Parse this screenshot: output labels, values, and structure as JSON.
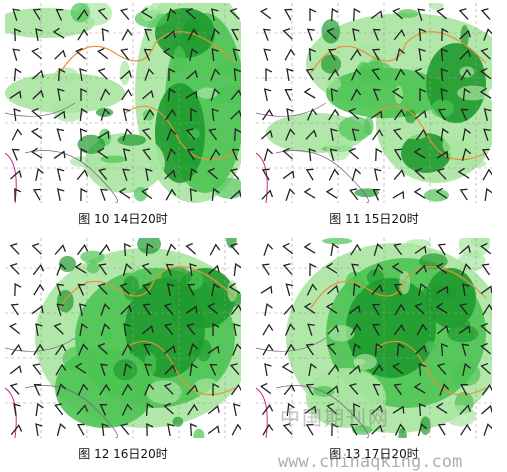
{
  "figures": [
    {
      "caption": "图 10 14日20时"
    },
    {
      "caption": "图 11 15日20时"
    },
    {
      "caption": "图 12 16日20时"
    },
    {
      "caption": "图 13 17日20时"
    }
  ],
  "watermark": {
    "text": "中国期刊网",
    "url": "www.chinaqking.com"
  }
}
